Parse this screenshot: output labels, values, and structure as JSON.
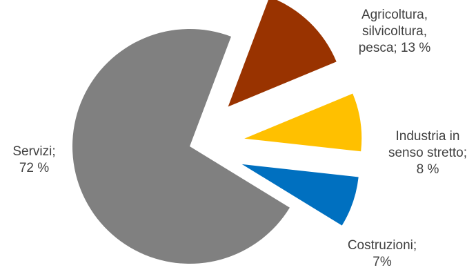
{
  "chart_data": {
    "type": "pie",
    "exploded": true,
    "slices": [
      {
        "name": "Agricoltura, silvicoltura, pesca",
        "value": 13,
        "label_lines": [
          "Agricoltura,",
          "silvicoltura,",
          "pesca; 13 %"
        ],
        "color": "#993300"
      },
      {
        "name": "Industria in senso stretto",
        "value": 8,
        "label_lines": [
          "Industria in",
          "senso stretto;",
          "8 %"
        ],
        "color": "#FFC000"
      },
      {
        "name": "Costruzioni",
        "value": 7,
        "label_lines": [
          "Costruzioni;",
          "7%"
        ],
        "color": "#0070C0"
      },
      {
        "name": "Servizi",
        "value": 72,
        "label_lines": [
          "Servizi;",
          "72 %"
        ],
        "color": "#808080"
      }
    ]
  }
}
